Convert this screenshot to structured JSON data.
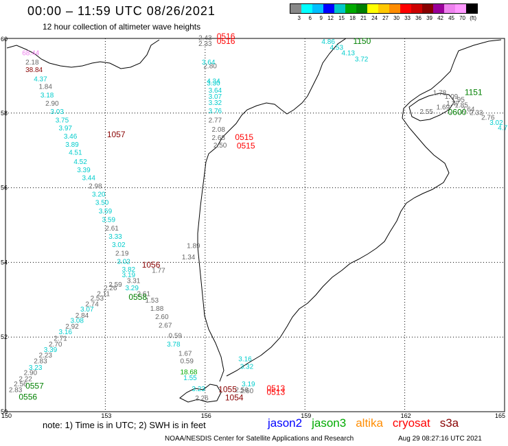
{
  "header": {
    "title": "00:00 – 11:59 UTC 08/26/2021",
    "subtitle": "12 hour collection of altimeter wave heights"
  },
  "legend": {
    "colors": [
      "#888888",
      "#00ffff",
      "#00bfff",
      "#0000ff",
      "#00c8c8",
      "#00aa00",
      "#008000",
      "#ffff00",
      "#ffc800",
      "#ff8c00",
      "#ff0000",
      "#cc0000",
      "#880000",
      "#990099",
      "#ee82ee",
      "#ff99ff",
      "#000000"
    ],
    "labels": [
      "3",
      "6",
      "9",
      "12",
      "15",
      "18",
      "21",
      "24",
      "27",
      "30",
      "33",
      "36",
      "39",
      "42",
      "45",
      "70",
      "(ft)"
    ]
  },
  "axes": {
    "lat_labels": [
      "60",
      "58",
      "56",
      "54",
      "52",
      "50"
    ],
    "lon_labels": [
      "150",
      "153",
      "156",
      "159",
      "162",
      "165"
    ]
  },
  "map_data": {
    "wave_heights": [
      {
        "text": "2.43",
        "color": "#666666",
        "lon": 155.8,
        "lat": 59.95
      },
      {
        "text": "2.33",
        "color": "#666666",
        "lon": 155.8,
        "lat": 59.8
      },
      {
        "text": "2.80",
        "color": "#666666",
        "lon": 155.95,
        "lat": 59.2
      },
      {
        "text": "3.64",
        "color": "#00cccc",
        "lon": 155.9,
        "lat": 59.3
      },
      {
        "text": "4.34",
        "color": "#00cccc",
        "lon": 156.05,
        "lat": 58.8
      },
      {
        "text": "3.30",
        "color": "#00cccc",
        "lon": 156.05,
        "lat": 58.74
      },
      {
        "text": "3.64",
        "color": "#00cccc",
        "lon": 156.1,
        "lat": 58.55
      },
      {
        "text": "3.07",
        "color": "#00cccc",
        "lon": 156.1,
        "lat": 58.38
      },
      {
        "text": "3.32",
        "color": "#00cccc",
        "lon": 156.1,
        "lat": 58.22
      },
      {
        "text": "3.76",
        "color": "#00cccc",
        "lon": 156.1,
        "lat": 58.0
      },
      {
        "text": "2.77",
        "color": "#666666",
        "lon": 156.1,
        "lat": 57.75
      },
      {
        "text": "2.08",
        "color": "#666666",
        "lon": 156.2,
        "lat": 57.5
      },
      {
        "text": "2.68",
        "color": "#666666",
        "lon": 156.2,
        "lat": 57.28
      },
      {
        "text": "2.50",
        "color": "#666666",
        "lon": 156.25,
        "lat": 57.08
      },
      {
        "text": "68.44",
        "color": "#ee82ee",
        "lon": 150.5,
        "lat": 59.55
      },
      {
        "text": "2.18",
        "color": "#666666",
        "lon": 150.6,
        "lat": 59.3
      },
      {
        "text": "38.84",
        "color": "#880000",
        "lon": 150.6,
        "lat": 59.1
      },
      {
        "text": "4.37",
        "color": "#00cccc",
        "lon": 150.85,
        "lat": 58.85
      },
      {
        "text": "1.84",
        "color": "#666666",
        "lon": 151.0,
        "lat": 58.65
      },
      {
        "text": "3.18",
        "color": "#00cccc",
        "lon": 151.05,
        "lat": 58.42
      },
      {
        "text": "2.90",
        "color": "#666666",
        "lon": 151.2,
        "lat": 58.2
      },
      {
        "text": "3.03",
        "color": "#00cccc",
        "lon": 151.35,
        "lat": 57.98
      },
      {
        "text": "3.75",
        "color": "#00cccc",
        "lon": 151.5,
        "lat": 57.75
      },
      {
        "text": "3.97",
        "color": "#00cccc",
        "lon": 151.6,
        "lat": 57.54
      },
      {
        "text": "3.46",
        "color": "#00cccc",
        "lon": 151.75,
        "lat": 57.32
      },
      {
        "text": "3.89",
        "color": "#00cccc",
        "lon": 151.8,
        "lat": 57.1
      },
      {
        "text": "4.51",
        "color": "#00cccc",
        "lon": 151.9,
        "lat": 56.88
      },
      {
        "text": "4.52",
        "color": "#00cccc",
        "lon": 152.05,
        "lat": 56.64
      },
      {
        "text": "3.39",
        "color": "#00cccc",
        "lon": 152.15,
        "lat": 56.42
      },
      {
        "text": "3.44",
        "color": "#00cccc",
        "lon": 152.3,
        "lat": 56.2
      },
      {
        "text": "2.98",
        "color": "#666666",
        "lon": 152.5,
        "lat": 55.98
      },
      {
        "text": "3.20",
        "color": "#00cccc",
        "lon": 152.6,
        "lat": 55.76
      },
      {
        "text": "3.50",
        "color": "#00cccc",
        "lon": 152.7,
        "lat": 55.54
      },
      {
        "text": "3.59",
        "color": "#00cccc",
        "lon": 152.8,
        "lat": 55.31
      },
      {
        "text": "3.59",
        "color": "#00cccc",
        "lon": 152.9,
        "lat": 55.08
      },
      {
        "text": "2.61",
        "color": "#666666",
        "lon": 153.0,
        "lat": 54.85
      },
      {
        "text": "3.33",
        "color": "#00cccc",
        "lon": 153.1,
        "lat": 54.63
      },
      {
        "text": "3.02",
        "color": "#00cccc",
        "lon": 153.2,
        "lat": 54.41
      },
      {
        "text": "2.19",
        "color": "#666666",
        "lon": 153.3,
        "lat": 54.18
      },
      {
        "text": "3.02",
        "color": "#00cccc",
        "lon": 153.35,
        "lat": 53.96
      },
      {
        "text": "3.82",
        "color": "#00cccc",
        "lon": 153.5,
        "lat": 53.75
      },
      {
        "text": "3.19",
        "color": "#00cccc",
        "lon": 153.5,
        "lat": 53.6
      },
      {
        "text": "3.29",
        "color": "#00cccc",
        "lon": 153.6,
        "lat": 53.25
      },
      {
        "text": "3.31",
        "color": "#666666",
        "lon": 153.65,
        "lat": 53.45
      },
      {
        "text": "2.59",
        "color": "#666666",
        "lon": 153.1,
        "lat": 53.35
      },
      {
        "text": "2.26",
        "color": "#666666",
        "lon": 152.95,
        "lat": 53.25
      },
      {
        "text": "2.11",
        "color": "#666666",
        "lon": 152.75,
        "lat": 53.1
      },
      {
        "text": "2.53",
        "color": "#666666",
        "lon": 152.55,
        "lat": 52.98
      },
      {
        "text": "2.74",
        "color": "#666666",
        "lon": 152.4,
        "lat": 52.82
      },
      {
        "text": "3.07",
        "color": "#00cccc",
        "lon": 152.25,
        "lat": 52.68
      },
      {
        "text": "2.84",
        "color": "#666666",
        "lon": 152.1,
        "lat": 52.52
      },
      {
        "text": "3.08",
        "color": "#00cccc",
        "lon": 151.95,
        "lat": 52.38
      },
      {
        "text": "2.92",
        "color": "#666666",
        "lon": 151.8,
        "lat": 52.22
      },
      {
        "text": "3.16",
        "color": "#00cccc",
        "lon": 151.6,
        "lat": 52.08
      },
      {
        "text": "2.71",
        "color": "#666666",
        "lon": 151.45,
        "lat": 51.9
      },
      {
        "text": "2.70",
        "color": "#666666",
        "lon": 151.3,
        "lat": 51.75
      },
      {
        "text": "3.39",
        "color": "#00cccc",
        "lon": 151.15,
        "lat": 51.6
      },
      {
        "text": "2.23",
        "color": "#666666",
        "lon": 151.0,
        "lat": 51.45
      },
      {
        "text": "2.83",
        "color": "#666666",
        "lon": 150.85,
        "lat": 51.3
      },
      {
        "text": "3.23",
        "color": "#00cccc",
        "lon": 150.7,
        "lat": 51.12
      },
      {
        "text": "2.90",
        "color": "#666666",
        "lon": 150.55,
        "lat": 50.98
      },
      {
        "text": "2.22",
        "color": "#666666",
        "lon": 150.4,
        "lat": 50.82
      },
      {
        "text": "2.56",
        "color": "#666666",
        "lon": 150.25,
        "lat": 50.68
      },
      {
        "text": "2.83",
        "color": "#666666",
        "lon": 150.1,
        "lat": 50.52
      },
      {
        "text": "1.89",
        "color": "#666666",
        "lon": 155.45,
        "lat": 54.38
      },
      {
        "text": "1.34",
        "color": "#666666",
        "lon": 155.3,
        "lat": 54.08
      },
      {
        "text": "1.77",
        "color": "#666666",
        "lon": 154.4,
        "lat": 53.72
      },
      {
        "text": "2.61",
        "color": "#666666",
        "lon": 153.95,
        "lat": 53.1
      },
      {
        "text": "1.53",
        "color": "#666666",
        "lon": 154.2,
        "lat": 52.92
      },
      {
        "text": "1.88",
        "color": "#666666",
        "lon": 154.35,
        "lat": 52.7
      },
      {
        "text": "2.60",
        "color": "#666666",
        "lon": 154.5,
        "lat": 52.48
      },
      {
        "text": "2.67",
        "color": "#666666",
        "lon": 154.6,
        "lat": 52.25
      },
      {
        "text": "0.59",
        "color": "#666666",
        "lon": 154.9,
        "lat": 51.98
      },
      {
        "text": "3.78",
        "color": "#00cccc",
        "lon": 154.85,
        "lat": 51.75
      },
      {
        "text": "1.67",
        "color": "#666666",
        "lon": 155.2,
        "lat": 51.5
      },
      {
        "text": "0.59",
        "color": "#666666",
        "lon": 155.25,
        "lat": 51.3
      },
      {
        "text": "18.68",
        "color": "#00aa00",
        "lon": 155.25,
        "lat": 51.0
      },
      {
        "text": "1.55",
        "color": "#00cccc",
        "lon": 155.35,
        "lat": 50.85
      },
      {
        "text": "3.23",
        "color": "#00cccc",
        "lon": 155.6,
        "lat": 50.55
      },
      {
        "text": "2.26",
        "color": "#666666",
        "lon": 155.7,
        "lat": 50.3
      },
      {
        "text": "3.16",
        "color": "#00cccc",
        "lon": 157.0,
        "lat": 51.35
      },
      {
        "text": "3.32",
        "color": "#00cccc",
        "lon": 157.05,
        "lat": 51.15
      },
      {
        "text": "3.19",
        "color": "#00cccc",
        "lon": 157.1,
        "lat": 50.68
      },
      {
        "text": "2.56",
        "color": "#666666",
        "lon": 156.9,
        "lat": 50.52
      },
      {
        "text": "2.60",
        "color": "#666666",
        "lon": 157.05,
        "lat": 50.5
      },
      {
        "text": "4.86",
        "color": "#00cccc",
        "lon": 159.5,
        "lat": 59.85
      },
      {
        "text": "4.53",
        "color": "#00cccc",
        "lon": 159.75,
        "lat": 59.7
      },
      {
        "text": "4.13",
        "color": "#00cccc",
        "lon": 160.1,
        "lat": 59.55
      },
      {
        "text": "3.72",
        "color": "#00cccc",
        "lon": 160.5,
        "lat": 59.38
      },
      {
        "text": "1.78",
        "color": "#666666",
        "lon": 162.85,
        "lat": 58.48
      },
      {
        "text": "1.09",
        "color": "#666666",
        "lon": 163.2,
        "lat": 58.38
      },
      {
        "text": "1.95",
        "color": "#666666",
        "lon": 163.4,
        "lat": 58.3
      },
      {
        "text": "1.47",
        "color": "#666666",
        "lon": 163.25,
        "lat": 58.2
      },
      {
        "text": "1.85",
        "color": "#666666",
        "lon": 163.5,
        "lat": 58.15
      },
      {
        "text": "1.69",
        "color": "#666666",
        "lon": 162.95,
        "lat": 58.1
      },
      {
        "text": "2.64",
        "color": "#666666",
        "lon": 163.7,
        "lat": 58.04
      },
      {
        "text": "2.55",
        "color": "#666666",
        "lon": 162.45,
        "lat": 57.98
      },
      {
        "text": "2.33",
        "color": "#666666",
        "lon": 163.95,
        "lat": 57.95
      },
      {
        "text": "2.76",
        "color": "#666666",
        "lon": 164.3,
        "lat": 57.82
      },
      {
        "text": "3.02",
        "color": "#00cccc",
        "lon": 164.55,
        "lat": 57.68
      },
      {
        "text": "4.7",
        "color": "#00cccc",
        "lon": 164.8,
        "lat": 57.55
      }
    ],
    "pass_times": [
      {
        "text": "0516",
        "color": "#ff0000",
        "lon": 156.35,
        "lat": 59.98
      },
      {
        "text": "0516",
        "color": "#ff0000",
        "lon": 156.35,
        "lat": 59.85
      },
      {
        "text": "0515",
        "color": "#ff0000",
        "lon": 156.9,
        "lat": 57.28
      },
      {
        "text": "0515",
        "color": "#ff0000",
        "lon": 156.95,
        "lat": 57.05
      },
      {
        "text": "1057",
        "color": "#880000",
        "lon": 153.05,
        "lat": 57.35
      },
      {
        "text": "1056",
        "color": "#880000",
        "lon": 154.1,
        "lat": 53.86
      },
      {
        "text": "0558",
        "color": "#008000",
        "lon": 153.7,
        "lat": 53.0
      },
      {
        "text": "0557",
        "color": "#008000",
        "lon": 150.6,
        "lat": 50.62
      },
      {
        "text": "0556",
        "color": "#008000",
        "lon": 150.4,
        "lat": 50.32
      },
      {
        "text": "1055",
        "color": "#880000",
        "lon": 156.4,
        "lat": 50.52
      },
      {
        "text": "1054",
        "color": "#880000",
        "lon": 156.6,
        "lat": 50.3
      },
      {
        "text": "0513",
        "color": "#ff0000",
        "lon": 157.85,
        "lat": 50.55
      },
      {
        "text": "0513",
        "color": "#ff0000",
        "lon": 157.85,
        "lat": 50.45
      },
      {
        "text": "1150",
        "color": "#008000",
        "lon": 160.45,
        "lat": 59.85
      },
      {
        "text": "1151",
        "color": "#008000",
        "lon": 163.8,
        "lat": 58.48
      },
      {
        "text": "0600",
        "color": "#008000",
        "lon": 163.3,
        "lat": 57.95
      }
    ]
  },
  "note": "note:  1) Time is in UTC;  2) SWH is in feet",
  "satellites": [
    {
      "name": "jason2",
      "color": "#0000ff"
    },
    {
      "name": "jason3",
      "color": "#00aa00"
    },
    {
      "name": "altika",
      "color": "#ff8c00"
    },
    {
      "name": "cryosat",
      "color": "#ff0000"
    },
    {
      "name": "s3a",
      "color": "#880000"
    }
  ],
  "footer": {
    "org": "NOAA/NESDIS Center for Satellite Applications and Research",
    "generated": "Aug 29 08:27:16 UTC 2021"
  }
}
